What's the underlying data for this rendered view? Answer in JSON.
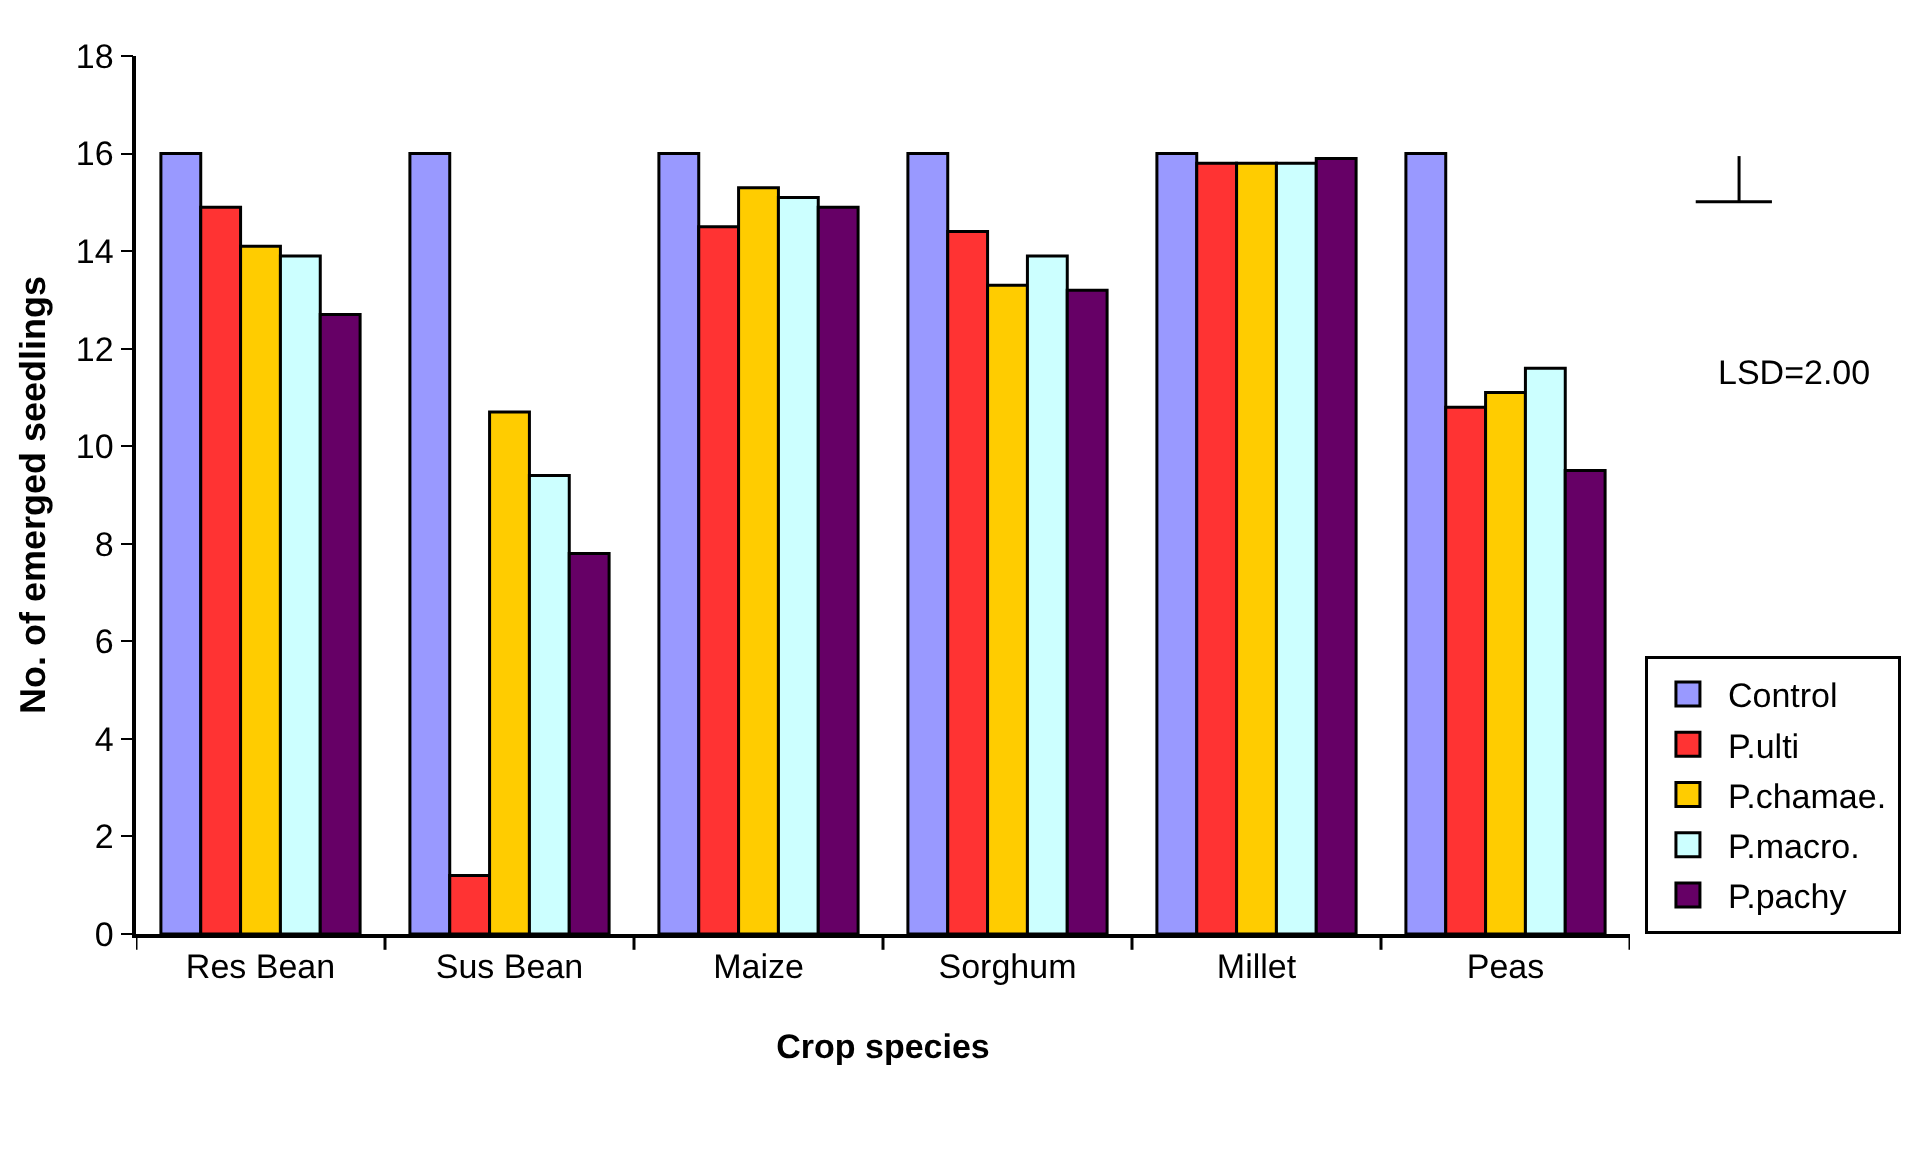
{
  "chart_data": {
    "type": "bar",
    "xlabel": "Crop species",
    "ylabel": "No. of emerged seedlings",
    "categories": [
      "Res Bean",
      "Sus Bean",
      "Maize",
      "Sorghum",
      "Millet",
      "Peas"
    ],
    "series": [
      {
        "name": "Control",
        "color": "#9999ff",
        "values": [
          16,
          16,
          16,
          16,
          16,
          16
        ]
      },
      {
        "name": "P.ulti",
        "color": "#ff3333",
        "values": [
          14.9,
          1.2,
          14.5,
          14.4,
          15.8,
          10.8
        ]
      },
      {
        "name": "P.chamae.",
        "color": "#ffcc00",
        "values": [
          14.1,
          10.7,
          15.3,
          13.3,
          15.8,
          11.1
        ]
      },
      {
        "name": "P.macro.",
        "color": "#ccffff",
        "values": [
          13.9,
          9.4,
          15.1,
          13.9,
          15.8,
          11.6
        ]
      },
      {
        "name": "P.pachy",
        "color": "#660066",
        "values": [
          12.7,
          7.8,
          14.9,
          13.2,
          15.9,
          9.5
        ]
      }
    ],
    "ylim": [
      0,
      18
    ],
    "yticks": [
      0,
      2,
      4,
      6,
      8,
      10,
      12,
      14,
      16,
      18
    ],
    "annotations": [
      "LSD=2.00"
    ],
    "legend": "bottom right"
  }
}
